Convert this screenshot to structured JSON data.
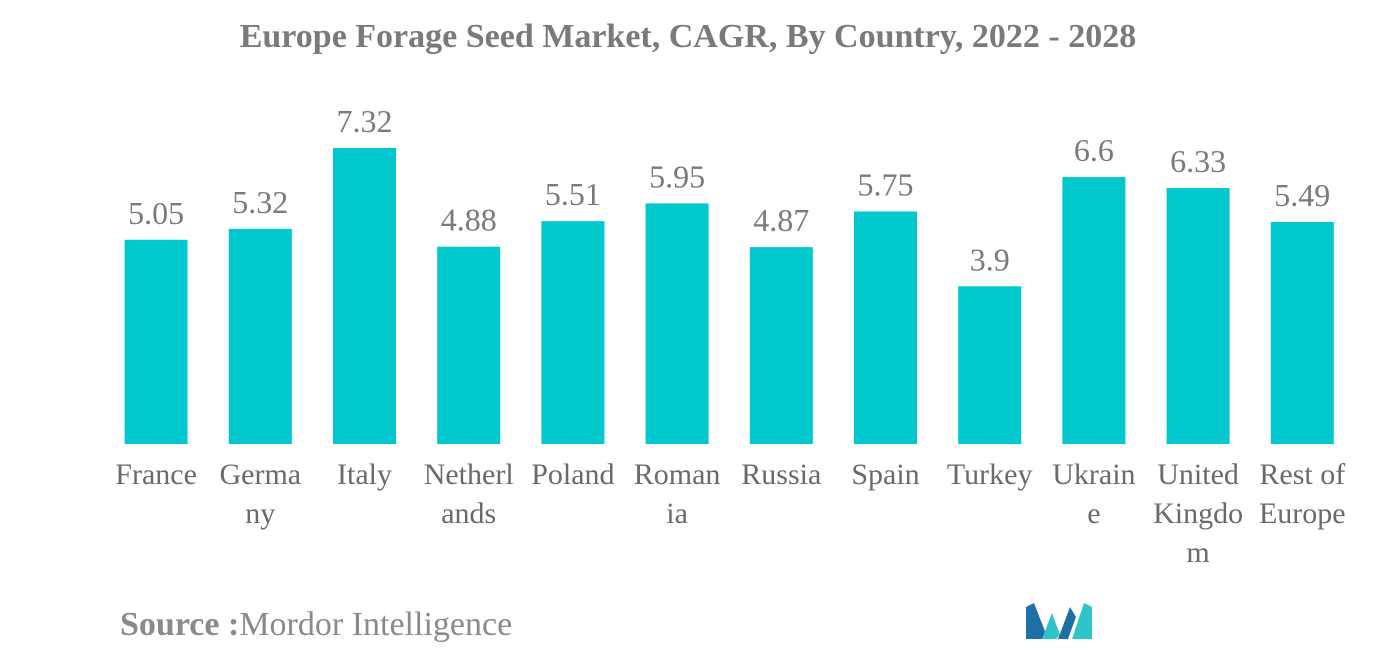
{
  "chart_data": {
    "type": "bar",
    "title": "Europe Forage Seed Market, CAGR, By Country, 2022 - 2028",
    "xlabel": "",
    "ylabel": "",
    "categories": [
      "France",
      "Germany",
      "Italy",
      "Netherlands",
      "Poland",
      "Romania",
      "Russia",
      "Spain",
      "Turkey",
      "Ukraine",
      "United Kingdom",
      "Rest of Europe"
    ],
    "category_display_lines": [
      [
        "France"
      ],
      [
        "Germa",
        "ny"
      ],
      [
        "Italy"
      ],
      [
        "Netherl",
        "ands"
      ],
      [
        "Poland"
      ],
      [
        "Roman",
        "ia"
      ],
      [
        "Russia"
      ],
      [
        "Spain"
      ],
      [
        "Turkey"
      ],
      [
        "Ukrain",
        "e"
      ],
      [
        "United",
        "Kingdo",
        "m"
      ],
      [
        "Rest of",
        "Europe"
      ]
    ],
    "values": [
      5.05,
      5.32,
      7.32,
      4.88,
      5.51,
      5.95,
      4.87,
      5.75,
      3.9,
      6.6,
      6.33,
      5.49
    ],
    "value_labels": [
      "5.05",
      "5.32",
      "7.32",
      "4.88",
      "5.51",
      "5.95",
      "4.87",
      "5.75",
      "3.9",
      "6.6",
      "6.33",
      "5.49"
    ],
    "ylim": [
      0,
      7.32
    ],
    "grid": false,
    "legend": "none",
    "bar_color": "#00c8cc"
  },
  "source": {
    "label": "Source :",
    "text": "Mordor Intelligence"
  },
  "logo": {
    "icon": "mordor-intelligence-logo-icon",
    "colors": [
      "#1e6fa8",
      "#2ec4c8"
    ]
  }
}
